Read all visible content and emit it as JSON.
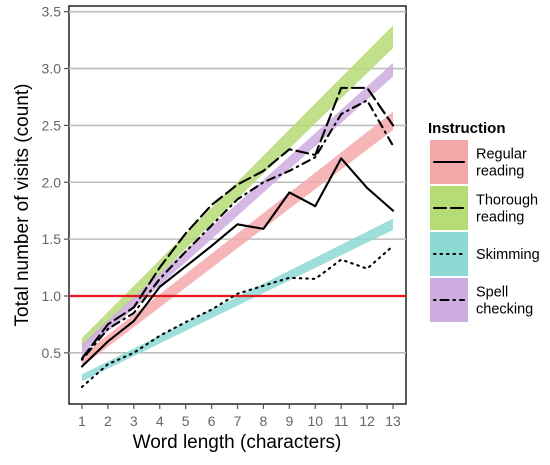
{
  "chart_data": {
    "type": "line",
    "xlabel": "Word length (characters)",
    "ylabel": "Total number of visits (count)",
    "x": [
      1,
      2,
      3,
      4,
      5,
      6,
      7,
      8,
      9,
      10,
      11,
      12,
      13
    ],
    "xlim": [
      0.5,
      13.5
    ],
    "ylim": [
      0.05,
      3.55
    ],
    "yticks": [
      0.5,
      1.0,
      1.5,
      2.0,
      2.5,
      3.0,
      3.5
    ],
    "ytick_labels": [
      "0.5",
      "1.0",
      "1.5",
      "2.0",
      "2.5",
      "3.0",
      "3.5"
    ],
    "grid": true,
    "reference_line": {
      "y": 1.0,
      "color": "#e8191e"
    },
    "legend": {
      "title": "Instruction",
      "placement": "right"
    },
    "series": [
      {
        "name": "Regular\nreading",
        "name_lines": [
          "Regular",
          "reading"
        ],
        "line_style": "solid",
        "band_color": "#f4a8aa",
        "values": [
          0.38,
          0.6,
          0.78,
          1.08,
          1.26,
          1.44,
          1.63,
          1.59,
          1.91,
          1.79,
          2.21,
          1.95,
          1.75
        ],
        "fit_band": [
          [
            0.38,
            0.48
          ],
          [
            2.46,
            2.62
          ]
        ]
      },
      {
        "name": "Thorough\nreading",
        "name_lines": [
          "Thorough",
          "reading"
        ],
        "line_style": "longdash",
        "band_color": "#b5dc76",
        "values": [
          0.45,
          0.75,
          0.9,
          1.25,
          1.55,
          1.8,
          1.98,
          2.1,
          2.29,
          2.24,
          2.83,
          2.83,
          2.5
        ],
        "fit_band": [
          [
            0.53,
            0.63
          ],
          [
            3.18,
            3.38
          ]
        ]
      },
      {
        "name": "Skimming",
        "name_lines": [
          "Skimming"
        ],
        "line_style": "dotted",
        "band_color": "#8dd9d4",
        "values": [
          0.2,
          0.4,
          0.5,
          0.65,
          0.77,
          0.88,
          1.02,
          1.09,
          1.16,
          1.15,
          1.32,
          1.24,
          1.44
        ],
        "fit_band": [
          [
            0.25,
            0.31
          ],
          [
            1.58,
            1.68
          ]
        ]
      },
      {
        "name": "Spell\nchecking",
        "name_lines": [
          "Spell",
          "checking"
        ],
        "line_style": "dotdash",
        "band_color": "#cfacdf",
        "values": [
          0.44,
          0.71,
          0.85,
          1.15,
          1.39,
          1.62,
          1.85,
          2.0,
          2.1,
          2.22,
          2.6,
          2.72,
          2.32
        ],
        "fit_band": [
          [
            0.48,
            0.58
          ],
          [
            2.93,
            3.05
          ]
        ]
      }
    ]
  }
}
